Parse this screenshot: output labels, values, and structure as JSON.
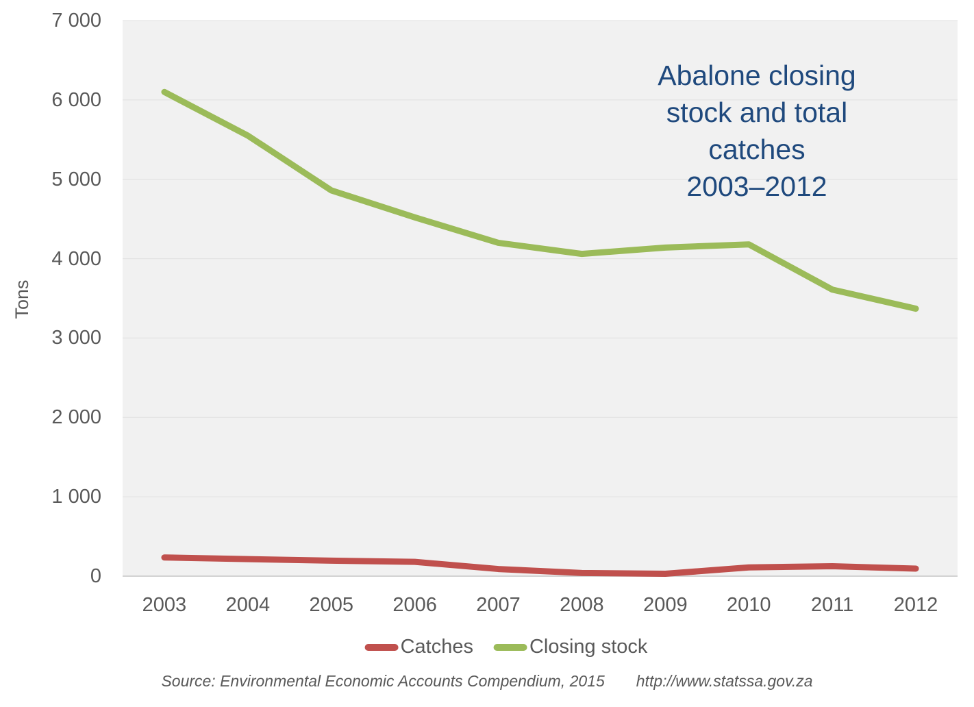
{
  "chart_data": {
    "type": "line",
    "title": "Abalone closing stock and total catches 2003–2012",
    "title_lines": [
      "Abalone closing",
      "stock and total",
      "catches",
      "2003–2012"
    ],
    "ylabel": "Tons",
    "categories": [
      "2003",
      "2004",
      "2005",
      "2006",
      "2007",
      "2008",
      "2009",
      "2010",
      "2011",
      "2012"
    ],
    "series": [
      {
        "name": "Catches",
        "color": "#C0504D",
        "values": [
          235,
          215,
          195,
          180,
          90,
          40,
          30,
          110,
          125,
          95
        ]
      },
      {
        "name": "Closing stock",
        "color": "#9BBB59",
        "values": [
          6100,
          5550,
          4860,
          4520,
          4200,
          4060,
          4140,
          4180,
          3610,
          3370
        ]
      }
    ],
    "ylim": [
      0,
      7000
    ],
    "ytick_interval": 1000,
    "ytick_labels": [
      "0",
      "1 000",
      "2 000",
      "3 000",
      "4 000",
      "5 000",
      "6 000",
      "7 000"
    ],
    "grid": true,
    "legend_position": "bottom",
    "colors": {
      "plot_background": "#F1F1F1",
      "gridline": "#E0E0E0",
      "axis_line": "#C6C6C6",
      "title_text": "#1F497D",
      "axis_text": "#595959"
    }
  },
  "footer": {
    "source": "Source: Environmental Economic Accounts Compendium, 2015",
    "url": "http://www.statssa.gov.za"
  }
}
